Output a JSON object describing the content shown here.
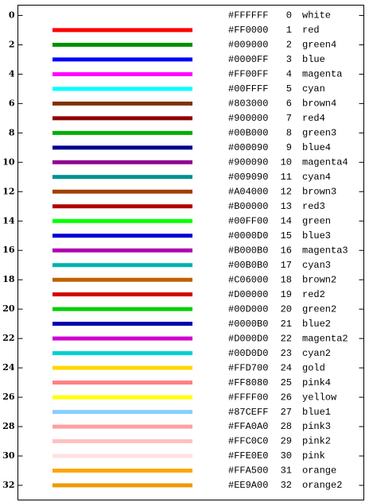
{
  "chart_data": {
    "type": "palette",
    "y": [
      0,
      1,
      2,
      3,
      4,
      5,
      6,
      7,
      8,
      9,
      10,
      11,
      12,
      13,
      14,
      15,
      16,
      17,
      18,
      19,
      20,
      21,
      22,
      23,
      24,
      25,
      26,
      27,
      28,
      29,
      30,
      31,
      32
    ],
    "codes": [
      "#FFFFFF",
      "#FF0000",
      "#009000",
      "#0000FF",
      "#FF00FF",
      "#00FFFF",
      "#803000",
      "#900000",
      "#00B000",
      "#000090",
      "#900090",
      "#009090",
      "#A04000",
      "#B00000",
      "#00FF00",
      "#0000D0",
      "#B000B0",
      "#00B0B0",
      "#C06000",
      "#D00000",
      "#00D000",
      "#0000B0",
      "#D000D0",
      "#00D0D0",
      "#FFD700",
      "#FF8080",
      "#FFFF00",
      "#87CEFF",
      "#FFA0A0",
      "#FFC0C0",
      "#FFE0E0",
      "#FFA500",
      "#EE9A00"
    ],
    "names": [
      "white",
      "red",
      "green4",
      "blue",
      "magenta",
      "cyan",
      "brown4",
      "red4",
      "green3",
      "blue4",
      "magenta4",
      "cyan4",
      "brown3",
      "red3",
      "green",
      "blue3",
      "magenta3",
      "cyan3",
      "brown2",
      "red2",
      "green2",
      "blue2",
      "magenta2",
      "cyan2",
      "gold",
      "pink4",
      "yellow",
      "blue1",
      "pink3",
      "pink2",
      "pink",
      "orange",
      "orange2"
    ],
    "ylim": [
      33,
      -0.7
    ],
    "yticks": [
      0,
      2,
      4,
      6,
      8,
      10,
      12,
      14,
      16,
      18,
      20,
      22,
      24,
      26,
      28,
      30,
      32
    ]
  }
}
